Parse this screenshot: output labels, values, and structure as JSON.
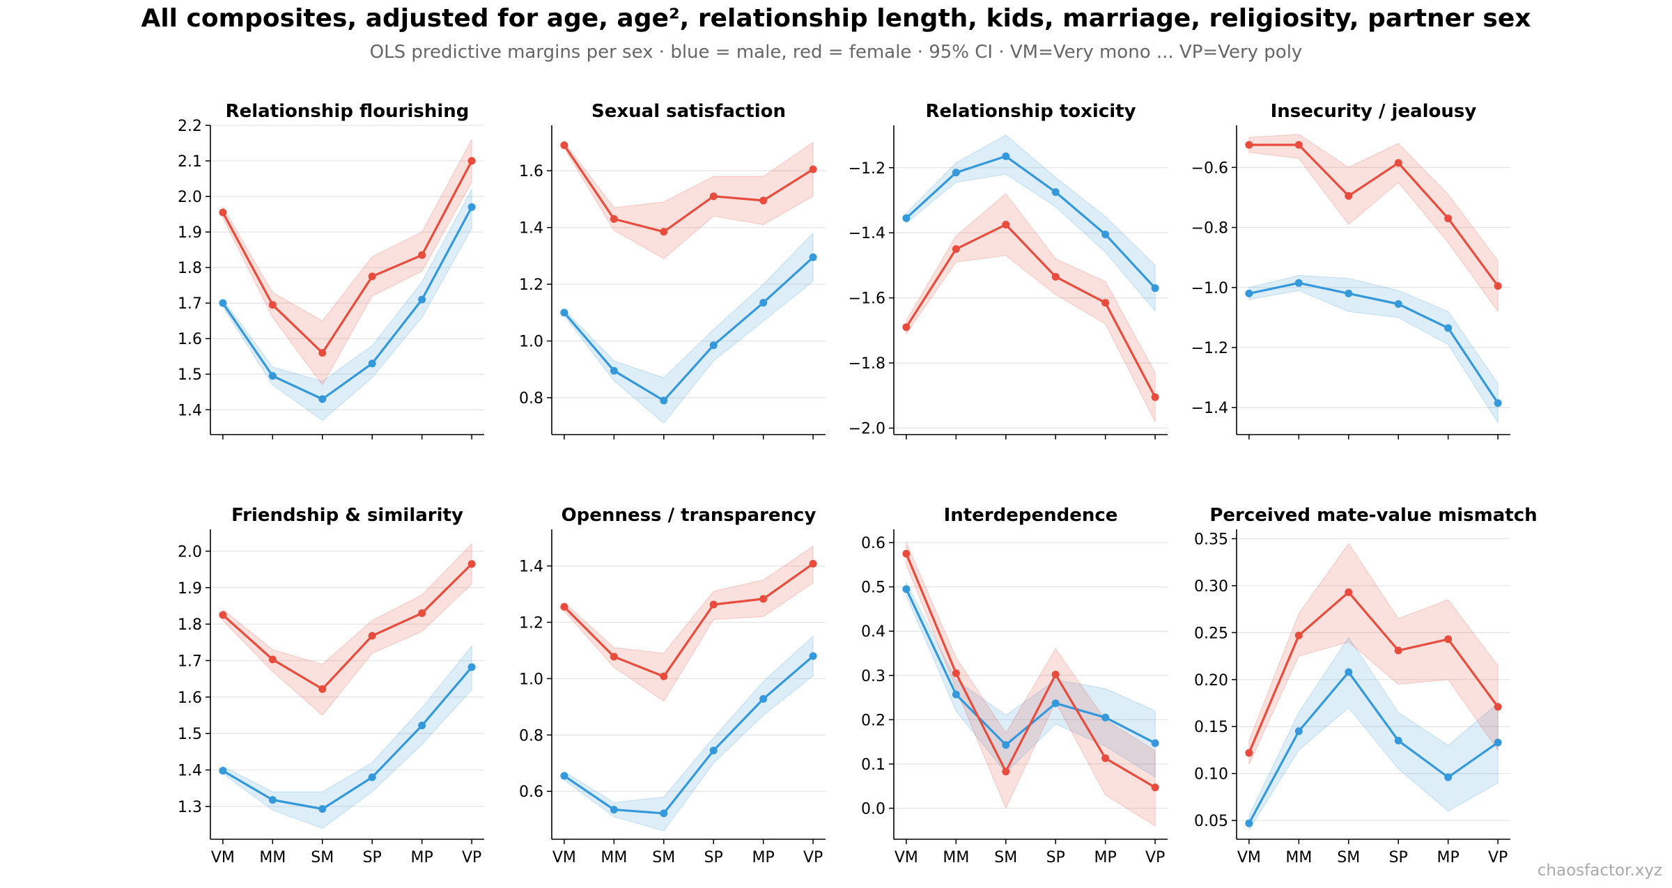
{
  "title": "All composites, adjusted for age, age², relationship length, kids, marriage, religiosity, partner sex",
  "subtitle": "OLS predictive margins per sex · blue = male, red = female · 95% CI · VM=Very mono ... VP=Very poly",
  "watermark": "chaosfactor.xyz",
  "colors": {
    "male": "#3498db",
    "female": "#e74c3c",
    "grid": "#e5e5e5",
    "axis": "#000000"
  },
  "categories": [
    "VM",
    "MM",
    "SM",
    "SP",
    "MP",
    "VP"
  ],
  "chart_data": [
    {
      "type": "line",
      "title": "Relationship flourishing",
      "ylim": [
        1.33,
        2.2
      ],
      "yticks": [
        1.4,
        1.5,
        1.6,
        1.7,
        1.8,
        1.9,
        2.0,
        2.1,
        2.2
      ],
      "ytick_labels": [
        "1.4",
        "1.5",
        "1.6",
        "1.7",
        "1.8",
        "1.9",
        "2.0",
        "2.1",
        "2.2"
      ],
      "series": [
        {
          "key": "male",
          "values": [
            1.7,
            1.495,
            1.43,
            1.53,
            1.71,
            1.97
          ],
          "lo": [
            1.69,
            1.47,
            1.37,
            1.49,
            1.66,
            1.91
          ],
          "hi": [
            1.71,
            1.52,
            1.48,
            1.58,
            1.76,
            2.02
          ]
        },
        {
          "key": "female",
          "values": [
            1.955,
            1.695,
            1.56,
            1.775,
            1.835,
            2.1
          ],
          "lo": [
            1.94,
            1.66,
            1.47,
            1.72,
            1.79,
            2.04
          ],
          "hi": [
            1.97,
            1.73,
            1.65,
            1.83,
            1.9,
            2.16
          ]
        }
      ]
    },
    {
      "type": "line",
      "title": "Sexual satisfaction",
      "ylim": [
        0.67,
        1.76
      ],
      "yticks": [
        0.8,
        1.0,
        1.2,
        1.4,
        1.6
      ],
      "ytick_labels": [
        "0.8",
        "1.0",
        "1.2",
        "1.4",
        "1.6"
      ],
      "series": [
        {
          "key": "male",
          "values": [
            1.1,
            0.895,
            0.79,
            0.985,
            1.135,
            1.295
          ],
          "lo": [
            1.09,
            0.86,
            0.71,
            0.93,
            1.07,
            1.21
          ],
          "hi": [
            1.11,
            0.93,
            0.87,
            1.04,
            1.2,
            1.38
          ]
        },
        {
          "key": "female",
          "values": [
            1.69,
            1.43,
            1.385,
            1.51,
            1.495,
            1.605
          ],
          "lo": [
            1.68,
            1.39,
            1.29,
            1.44,
            1.41,
            1.51
          ],
          "hi": [
            1.7,
            1.47,
            1.49,
            1.58,
            1.58,
            1.7
          ]
        }
      ]
    },
    {
      "type": "line",
      "title": "Relationship toxicity",
      "ylim": [
        -2.02,
        -1.07
      ],
      "yticks": [
        -2.0,
        -1.8,
        -1.6,
        -1.4,
        -1.2
      ],
      "ytick_labels": [
        "−2.0",
        "−1.8",
        "−1.6",
        "−1.4",
        "−1.2"
      ],
      "series": [
        {
          "key": "male",
          "values": [
            -1.355,
            -1.215,
            -1.165,
            -1.275,
            -1.405,
            -1.57
          ],
          "lo": [
            -1.37,
            -1.245,
            -1.22,
            -1.32,
            -1.46,
            -1.64
          ],
          "hi": [
            -1.34,
            -1.185,
            -1.1,
            -1.23,
            -1.35,
            -1.5
          ]
        },
        {
          "key": "female",
          "values": [
            -1.69,
            -1.45,
            -1.375,
            -1.535,
            -1.615,
            -1.905
          ],
          "lo": [
            -1.71,
            -1.49,
            -1.47,
            -1.59,
            -1.68,
            -1.98
          ],
          "hi": [
            -1.67,
            -1.41,
            -1.28,
            -1.48,
            -1.55,
            -1.83
          ]
        }
      ]
    },
    {
      "type": "line",
      "title": "Insecurity / jealousy",
      "ylim": [
        -1.49,
        -0.46
      ],
      "yticks": [
        -1.4,
        -1.2,
        -1.0,
        -0.8,
        -0.6
      ],
      "ytick_labels": [
        "−1.4",
        "−1.2",
        "−1.0",
        "−0.8",
        "−0.6"
      ],
      "series": [
        {
          "key": "male",
          "values": [
            -1.02,
            -0.985,
            -1.02,
            -1.055,
            -1.135,
            -1.385
          ],
          "lo": [
            -1.04,
            -1.01,
            -1.08,
            -1.1,
            -1.19,
            -1.45
          ],
          "hi": [
            -1.0,
            -0.96,
            -0.97,
            -1.01,
            -1.08,
            -1.32
          ]
        },
        {
          "key": "female",
          "values": [
            -0.525,
            -0.525,
            -0.695,
            -0.585,
            -0.77,
            -0.995
          ],
          "lo": [
            -0.55,
            -0.57,
            -0.79,
            -0.65,
            -0.85,
            -1.08
          ],
          "hi": [
            -0.5,
            -0.49,
            -0.6,
            -0.52,
            -0.69,
            -0.91
          ]
        }
      ]
    },
    {
      "type": "line",
      "title": "Friendship & similarity",
      "ylim": [
        1.21,
        2.06
      ],
      "yticks": [
        1.3,
        1.4,
        1.5,
        1.6,
        1.7,
        1.8,
        1.9,
        2.0
      ],
      "ytick_labels": [
        "1.3",
        "1.4",
        "1.5",
        "1.6",
        "1.7",
        "1.8",
        "1.9",
        "2.0"
      ],
      "series": [
        {
          "key": "male",
          "values": [
            1.398,
            1.318,
            1.293,
            1.38,
            1.522,
            1.682
          ],
          "lo": [
            1.39,
            1.29,
            1.24,
            1.34,
            1.47,
            1.62
          ],
          "hi": [
            1.41,
            1.34,
            1.34,
            1.42,
            1.57,
            1.74
          ]
        },
        {
          "key": "female",
          "values": [
            1.825,
            1.703,
            1.622,
            1.768,
            1.83,
            1.965
          ],
          "lo": [
            1.81,
            1.67,
            1.55,
            1.72,
            1.78,
            1.91
          ],
          "hi": [
            1.84,
            1.73,
            1.69,
            1.81,
            1.88,
            2.02
          ]
        }
      ]
    },
    {
      "type": "line",
      "title": "Openness / transparency",
      "ylim": [
        0.43,
        1.53
      ],
      "yticks": [
        0.6,
        0.8,
        1.0,
        1.2,
        1.4
      ],
      "ytick_labels": [
        "0.6",
        "0.8",
        "1.0",
        "1.2",
        "1.4"
      ],
      "series": [
        {
          "key": "male",
          "values": [
            0.655,
            0.535,
            0.522,
            0.745,
            0.928,
            1.08
          ],
          "lo": [
            0.64,
            0.51,
            0.46,
            0.7,
            0.87,
            1.01
          ],
          "hi": [
            0.67,
            0.56,
            0.58,
            0.79,
            0.99,
            1.15
          ]
        },
        {
          "key": "female",
          "values": [
            1.255,
            1.078,
            1.008,
            1.263,
            1.283,
            1.408
          ],
          "lo": [
            1.24,
            1.04,
            0.92,
            1.21,
            1.22,
            1.34
          ],
          "hi": [
            1.27,
            1.11,
            1.09,
            1.31,
            1.35,
            1.47
          ]
        }
      ]
    },
    {
      "type": "line",
      "title": "Interdependence",
      "ylim": [
        -0.07,
        0.63
      ],
      "yticks": [
        0.0,
        0.1,
        0.2,
        0.3,
        0.4,
        0.5,
        0.6
      ],
      "ytick_labels": [
        "0.0",
        "0.1",
        "0.2",
        "0.3",
        "0.4",
        "0.5",
        "0.6"
      ],
      "series": [
        {
          "key": "male",
          "values": [
            0.495,
            0.257,
            0.143,
            0.237,
            0.205,
            0.147
          ],
          "lo": [
            0.48,
            0.22,
            0.08,
            0.19,
            0.14,
            0.07
          ],
          "hi": [
            0.51,
            0.29,
            0.21,
            0.29,
            0.27,
            0.22
          ]
        },
        {
          "key": "female",
          "values": [
            0.575,
            0.305,
            0.083,
            0.302,
            0.113,
            0.047
          ],
          "lo": [
            0.55,
            0.27,
            0.0,
            0.24,
            0.03,
            -0.04
          ],
          "hi": [
            0.6,
            0.34,
            0.17,
            0.36,
            0.2,
            0.13
          ]
        }
      ]
    },
    {
      "type": "line",
      "title": "Perceived mate-value mismatch",
      "ylim": [
        0.03,
        0.36
      ],
      "yticks": [
        0.05,
        0.1,
        0.15,
        0.2,
        0.25,
        0.3,
        0.35
      ],
      "ytick_labels": [
        "0.05",
        "0.10",
        "0.15",
        "0.20",
        "0.25",
        "0.30",
        "0.35"
      ],
      "series": [
        {
          "key": "male",
          "values": [
            0.047,
            0.145,
            0.208,
            0.135,
            0.096,
            0.133
          ],
          "lo": [
            0.04,
            0.125,
            0.17,
            0.105,
            0.06,
            0.09
          ],
          "hi": [
            0.055,
            0.165,
            0.245,
            0.165,
            0.13,
            0.175
          ]
        },
        {
          "key": "female",
          "values": [
            0.122,
            0.247,
            0.293,
            0.231,
            0.243,
            0.171
          ],
          "lo": [
            0.11,
            0.225,
            0.24,
            0.195,
            0.2,
            0.125
          ],
          "hi": [
            0.135,
            0.27,
            0.345,
            0.265,
            0.285,
            0.215
          ]
        }
      ]
    }
  ]
}
